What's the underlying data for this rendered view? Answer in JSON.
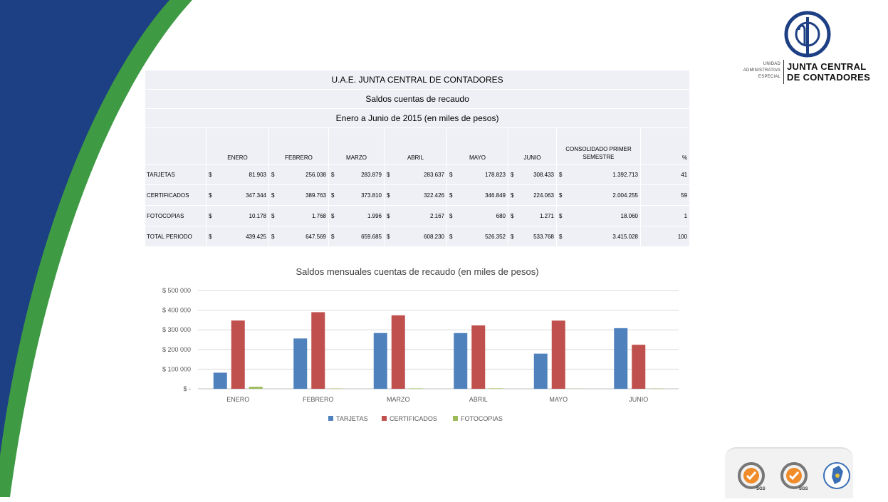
{
  "colors": {
    "navy": "#1d3f84",
    "green": "#3f9a44",
    "tarjetas": "#4f81bd",
    "certificados": "#c0504d",
    "fotocopias": "#9bbb59"
  },
  "logo": {
    "small_lines": [
      "UNIDAD",
      "ADMINISTRATIVA",
      "ESPECIAL"
    ],
    "big_lines": [
      "JUNTA CENTRAL",
      "DE CONTADORES"
    ],
    "icon": "jcc-monogram-icon"
  },
  "table": {
    "title": "U.A.E. JUNTA CENTRAL DE CONTADORES",
    "subtitle": "Saldos cuentas de recaudo",
    "period": "Enero a Junio de 2015   (en miles de pesos)",
    "headers": [
      "ENERO",
      "FEBRERO",
      "MARZO",
      "ABRIL",
      "MAYO",
      "JUNIO",
      "CONSOLIDADO PRIMER SEMESTRE",
      "%"
    ],
    "currency": "$",
    "rows": [
      {
        "label": "TARJETAS",
        "values": [
          "81.903",
          "256.038",
          "283.879",
          "283.637",
          "178.823",
          "308.433",
          "1.392.713"
        ],
        "pct": "41"
      },
      {
        "label": "CERTIFICADOS",
        "values": [
          "347.344",
          "389.763",
          "373.810",
          "322.426",
          "346.849",
          "224.063",
          "2.004.255"
        ],
        "pct": "59"
      },
      {
        "label": "FOTOCOPIAS",
        "values": [
          "10.178",
          "1.768",
          "1.996",
          "2.167",
          "680",
          "1.271",
          "18.060"
        ],
        "pct": "1"
      },
      {
        "label": "TOTAL PERIODO",
        "values": [
          "439.425",
          "647.569",
          "659.685",
          "608.230",
          "526.352",
          "533.768",
          "3.415.028"
        ],
        "pct": "100"
      }
    ]
  },
  "chart_data": {
    "type": "bar",
    "title": "Saldos  mensuales cuentas de recaudo  (en miles de pesos)",
    "categories": [
      "ENERO",
      "FEBRERO",
      "MARZO",
      "ABRIL",
      "MAYO",
      "JUNIO"
    ],
    "series": [
      {
        "name": "TARJETAS",
        "color": "#4f81bd",
        "values": [
          81903,
          256038,
          283879,
          283637,
          178823,
          308433
        ]
      },
      {
        "name": "CERTIFICADOS",
        "color": "#c0504d",
        "values": [
          347344,
          389763,
          373810,
          322426,
          346849,
          224063
        ]
      },
      {
        "name": "FOTOCOPIAS",
        "color": "#9bbb59",
        "values": [
          10178,
          1768,
          1996,
          2167,
          680,
          1271
        ]
      }
    ],
    "ylim": [
      0,
      500000
    ],
    "yticks": [
      0,
      100000,
      200000,
      300000,
      400000,
      500000
    ],
    "ytick_labels": [
      "$ -",
      "$ 100 000",
      "$ 200 000",
      "$ 300 000",
      "$ 400 000",
      "$ 500 000"
    ],
    "grid": true,
    "legend": "bottom"
  },
  "badges": {
    "labels": [
      "SGS",
      "SGS"
    ],
    "icons": [
      "sgs-cert-badge-icon",
      "sgs-cert-badge-icon",
      "colombia-map-seal-icon"
    ]
  }
}
